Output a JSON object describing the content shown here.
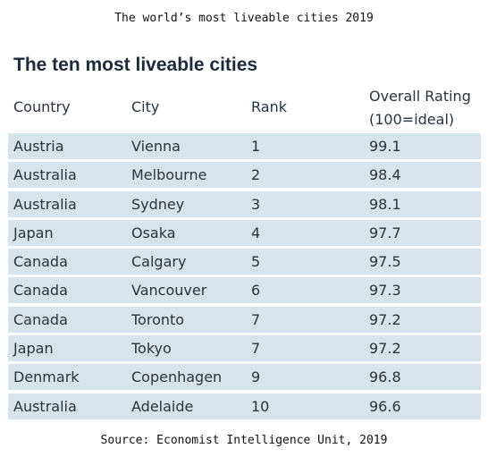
{
  "caption_top": "The world’s most liveable cities 2019",
  "table_title": "The ten most liveable cities",
  "headers": {
    "country": "Country",
    "city": "City",
    "rank": "Rank",
    "rating_line1": "Overall Rating",
    "rating_line2": "(100=ideal)"
  },
  "rows": [
    {
      "country": "Austria",
      "city": "Vienna",
      "rank": "1",
      "rating": "99.1"
    },
    {
      "country": "Australia",
      "city": "Melbourne",
      "rank": "2",
      "rating": "98.4"
    },
    {
      "country": "Australia",
      "city": "Sydney",
      "rank": "3",
      "rating": "98.1"
    },
    {
      "country": "Japan",
      "city": "Osaka",
      "rank": "4",
      "rating": "97.7"
    },
    {
      "country": "Canada",
      "city": "Calgary",
      "rank": "5",
      "rating": "97.5"
    },
    {
      "country": "Canada",
      "city": "Vancouver",
      "rank": "6",
      "rating": "97.3"
    },
    {
      "country": "Canada",
      "city": "Toronto",
      "rank": "7",
      "rating": "97.2"
    },
    {
      "country": "Japan",
      "city": "Tokyo",
      "rank": "7",
      "rating": "97.2"
    },
    {
      "country": "Denmark",
      "city": "Copenhagen",
      "rank": "9",
      "rating": "96.8"
    },
    {
      "country": "Australia",
      "city": "Adelaide",
      "rank": "10",
      "rating": "96.6"
    }
  ],
  "caption_bottom": "Source: Economist Intelligence Unit, 2019"
}
